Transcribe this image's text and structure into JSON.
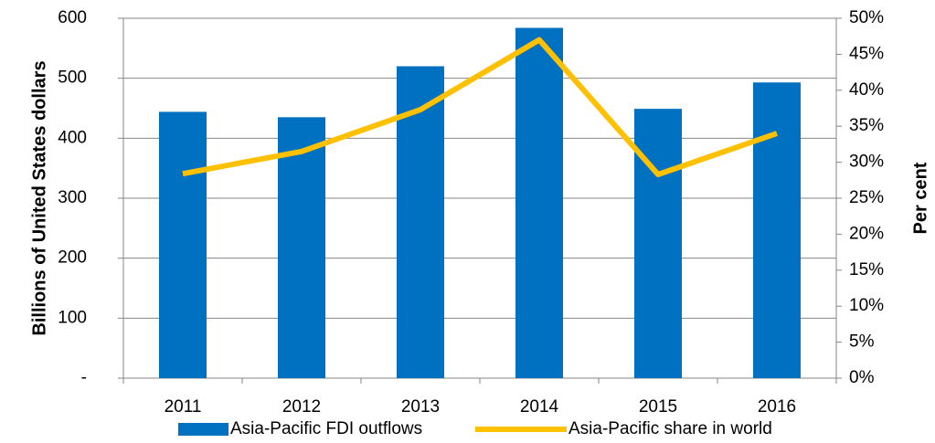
{
  "chart_data": {
    "type": "bar-line",
    "y_label": "Billions of United States dollars",
    "y2_label": "Per cent",
    "categories": [
      "2011",
      "2012",
      "2013",
      "2014",
      "2015",
      "2016"
    ],
    "series": [
      {
        "name": "Asia-Pacific FDI outflows",
        "type": "bar",
        "color": "#0070c0",
        "values": [
          444,
          435,
          520,
          584,
          449,
          493
        ]
      },
      {
        "name": "Asia-Pacific share in world",
        "type": "line",
        "axis": "y2",
        "color": "#ffc000",
        "values": [
          28.4,
          31.5,
          37.3,
          47.0,
          28.3,
          34.0
        ]
      }
    ],
    "ylim": [
      0,
      600
    ],
    "yticks": [
      {
        "value": 0,
        "label": "-"
      },
      100,
      200,
      300,
      400,
      500,
      600
    ],
    "y2lim": [
      0,
      50
    ],
    "y2ticks": [
      {
        "value": 0,
        "label": "0%"
      },
      {
        "value": 5,
        "label": "5%"
      },
      {
        "value": 10,
        "label": "10%"
      },
      {
        "value": 15,
        "label": "15%"
      },
      {
        "value": 20,
        "label": "20%"
      },
      {
        "value": 25,
        "label": "25%"
      },
      {
        "value": 30,
        "label": "30%"
      },
      {
        "value": 35,
        "label": "35%"
      },
      {
        "value": 40,
        "label": "40%"
      },
      {
        "value": 45,
        "label": "45%"
      },
      {
        "value": 50,
        "label": "50%"
      }
    ],
    "grid": true,
    "legend": "bottom"
  }
}
